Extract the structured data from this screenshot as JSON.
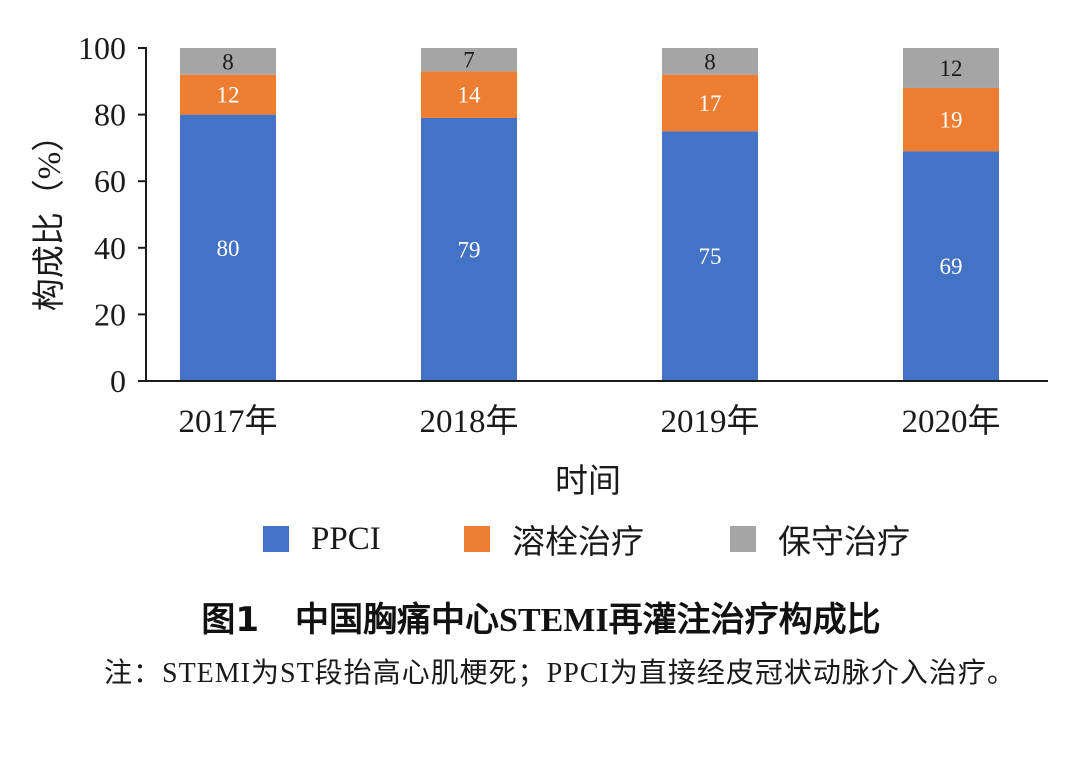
{
  "chart_data": {
    "type": "bar",
    "stacked": true,
    "xlabel": "时间",
    "ylabel": "构成比（%）",
    "ylim": [
      0,
      100
    ],
    "yticks": [
      0,
      20,
      40,
      60,
      80,
      100
    ],
    "categories": [
      "2017年",
      "2018年",
      "2019年",
      "2020年"
    ],
    "series": [
      {
        "name": "PPCI",
        "color": "#4472c4",
        "values": [
          80,
          79,
          75,
          69
        ],
        "label_color": "#ffffff"
      },
      {
        "name": "溶栓治疗",
        "color": "#ed7d31",
        "values": [
          12,
          14,
          17,
          19
        ],
        "label_color": "#ffffff"
      },
      {
        "name": "保守治疗",
        "color": "#a5a5a5",
        "values": [
          8,
          7,
          8,
          12
        ],
        "label_color": "#1a1a1a"
      }
    ],
    "legend_position": "bottom",
    "grid": false
  },
  "caption": {
    "prefix": "图1",
    "text_a": "中国胸痛中心",
    "text_b": "STEMI",
    "text_c": "再灌注治疗构成比"
  },
  "note": "注：STEMI为ST段抬高心肌梗死；PPCI为直接经皮冠状动脉介入治疗。"
}
